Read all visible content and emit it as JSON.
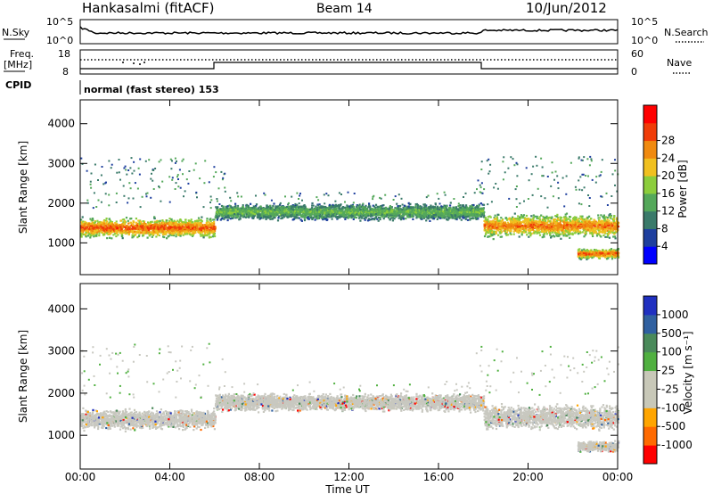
{
  "header": {
    "title": "Hankasalmi (fitACF)",
    "beam": "Beam 14",
    "date": "10/Jun/2012"
  },
  "noise_panel": {
    "left_label": "N.Sky",
    "right_label": "N.Search",
    "left_ticks": [
      "10^5",
      "10^0"
    ],
    "right_ticks": [
      "10^5",
      "10^0"
    ]
  },
  "freq_panel": {
    "left_label_line1": "Freq.",
    "left_label_line2": "[MHz]",
    "right_label": "Nave",
    "left_ticks": [
      "18",
      "8"
    ],
    "right_ticks": [
      "60",
      "0"
    ]
  },
  "cpid": {
    "label": "CPID",
    "value": "normal (fast stereo) 153"
  },
  "colors": {
    "power": [
      "#0000ff",
      "#1e3f9e",
      "#3a7a6a",
      "#54a85a",
      "#8ccd3c",
      "#f0c020",
      "#f08a10",
      "#f03c08",
      "#ff0000"
    ],
    "velocity": [
      "#ff0000",
      "#ff6a00",
      "#ffa500",
      "#c8c8b8",
      "#c8c8b8",
      "#50b040",
      "#4a8a5a",
      "#3060a0",
      "#2030c0"
    ],
    "ground_scatter": "#c8c8c0"
  },
  "chart_data": [
    {
      "type": "heatmap",
      "name": "power",
      "ylabel": "Slant Range [km]",
      "yticks": [
        "1000",
        "2000",
        "3000",
        "4000"
      ],
      "ylim": [
        200,
        4600
      ],
      "xlim": [
        0,
        24
      ],
      "colorbar": {
        "label": "Power [dB]",
        "ticks": [
          "4",
          "8",
          "12",
          "16",
          "20",
          "24",
          "28"
        ],
        "range": [
          0,
          32
        ]
      },
      "bands": [
        {
          "x0": 0,
          "x1": 6,
          "range_center": 1400,
          "range_width": 300,
          "level": 28
        },
        {
          "x0": 6,
          "x1": 18,
          "range_center": 1800,
          "range_width": 250,
          "level": 14
        },
        {
          "x0": 18,
          "x1": 24,
          "range_center": 1450,
          "range_width": 350,
          "level": 26
        },
        {
          "x0": 22.2,
          "x1": 24,
          "range_center": 750,
          "range_width": 150,
          "level": 28
        }
      ]
    },
    {
      "type": "heatmap",
      "name": "velocity",
      "ylabel": "Slant Range [km]",
      "yticks": [
        "1000",
        "2000",
        "3000",
        "4000"
      ],
      "ylim": [
        200,
        4600
      ],
      "xlim": [
        0,
        24
      ],
      "colorbar": {
        "label": "Velocity [m s⁻¹]",
        "ticks": [
          "-1000",
          "-500",
          "-100",
          "-25",
          "25",
          "100",
          "500",
          "1000"
        ],
        "range": [
          -1200,
          1200
        ]
      },
      "xlabel": "Time UT",
      "xticks": [
        "00:00",
        "04:00",
        "08:00",
        "12:00",
        "16:00",
        "20:00",
        "00:00"
      ]
    }
  ]
}
